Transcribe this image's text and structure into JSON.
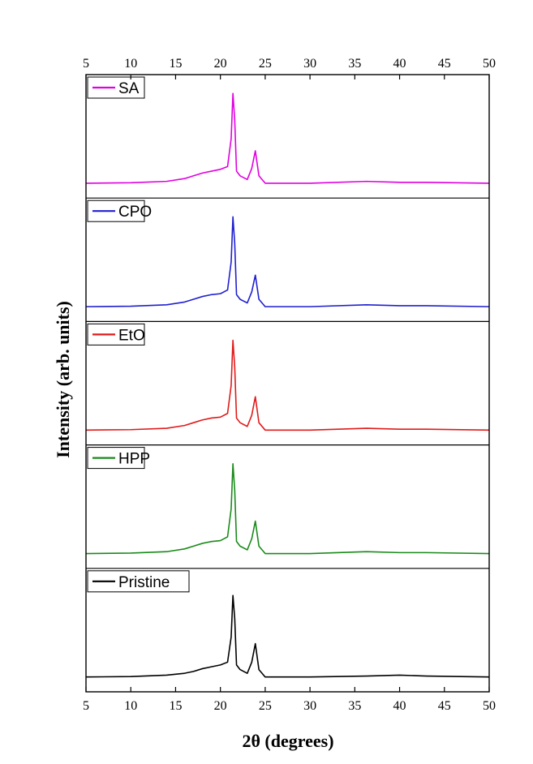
{
  "chart_data": {
    "type": "line",
    "stacked_panels": true,
    "xlabel": "2θ (degrees)",
    "ylabel": "Intensity (arb. units)",
    "xlim": [
      5,
      50
    ],
    "xticks": [
      5,
      10,
      15,
      20,
      25,
      30,
      35,
      40,
      45,
      50
    ],
    "xtick_labels": [
      "5",
      "10",
      "15",
      "20",
      "25",
      "30",
      "35",
      "40",
      "45",
      "50"
    ],
    "ylim": [
      0,
      1
    ],
    "yticks_shown": false,
    "grid": false,
    "legend_placement": "top-left of each panel",
    "series": [
      {
        "name": "SA",
        "color": "#e000e0",
        "x": [
          5,
          10,
          14,
          16,
          17,
          18,
          19,
          20,
          20.8,
          21.2,
          21.4,
          21.6,
          21.8,
          22.2,
          23,
          23.5,
          23.9,
          24.3,
          25,
          30,
          36.3,
          40,
          43,
          50
        ],
        "y": [
          0.02,
          0.025,
          0.04,
          0.07,
          0.1,
          0.13,
          0.15,
          0.17,
          0.2,
          0.5,
          0.99,
          0.7,
          0.15,
          0.1,
          0.06,
          0.18,
          0.37,
          0.1,
          0.02,
          0.02,
          0.04,
          0.03,
          0.03,
          0.02
        ]
      },
      {
        "name": "CPO",
        "color": "#1f1fd0",
        "x": [
          5,
          10,
          14,
          16,
          17,
          18,
          19,
          20,
          20.8,
          21.2,
          21.4,
          21.6,
          21.8,
          22.2,
          23,
          23.5,
          23.9,
          24.3,
          25,
          30,
          36.3,
          40,
          43,
          50
        ],
        "y": [
          0.02,
          0.025,
          0.04,
          0.07,
          0.1,
          0.13,
          0.15,
          0.16,
          0.2,
          0.5,
          0.99,
          0.7,
          0.15,
          0.1,
          0.06,
          0.18,
          0.36,
          0.1,
          0.02,
          0.02,
          0.04,
          0.03,
          0.03,
          0.02
        ]
      },
      {
        "name": "EtO",
        "color": "#e01a1a",
        "x": [
          5,
          10,
          14,
          16,
          17,
          18,
          19,
          20,
          20.8,
          21.2,
          21.4,
          21.6,
          21.8,
          22.2,
          23,
          23.5,
          23.9,
          24.3,
          25,
          30,
          36.3,
          40,
          43,
          50
        ],
        "y": [
          0.02,
          0.025,
          0.04,
          0.07,
          0.1,
          0.13,
          0.15,
          0.16,
          0.2,
          0.5,
          0.99,
          0.7,
          0.15,
          0.1,
          0.06,
          0.18,
          0.38,
          0.1,
          0.02,
          0.02,
          0.04,
          0.03,
          0.03,
          0.02
        ]
      },
      {
        "name": "HPP",
        "color": "#1a8a1a",
        "x": [
          5,
          10,
          14,
          16,
          17,
          18,
          19,
          20,
          20.8,
          21.2,
          21.4,
          21.6,
          21.8,
          22.2,
          23,
          23.5,
          23.9,
          24.3,
          25,
          30,
          36.3,
          40,
          43,
          50
        ],
        "y": [
          0.02,
          0.025,
          0.04,
          0.07,
          0.1,
          0.13,
          0.15,
          0.16,
          0.2,
          0.5,
          0.99,
          0.7,
          0.15,
          0.1,
          0.06,
          0.18,
          0.37,
          0.1,
          0.02,
          0.02,
          0.04,
          0.03,
          0.03,
          0.02
        ]
      },
      {
        "name": "Pristine",
        "color": "#000000",
        "x": [
          5,
          10,
          14,
          16,
          17,
          18,
          19,
          20,
          20.8,
          21.2,
          21.4,
          21.6,
          21.8,
          22.2,
          23,
          23.5,
          23.9,
          24.3,
          25,
          30,
          36.3,
          40,
          43,
          50
        ],
        "y": [
          0.02,
          0.025,
          0.04,
          0.06,
          0.08,
          0.11,
          0.13,
          0.15,
          0.18,
          0.45,
          0.9,
          0.65,
          0.15,
          0.1,
          0.06,
          0.18,
          0.38,
          0.1,
          0.02,
          0.02,
          0.03,
          0.04,
          0.03,
          0.02
        ]
      }
    ]
  }
}
